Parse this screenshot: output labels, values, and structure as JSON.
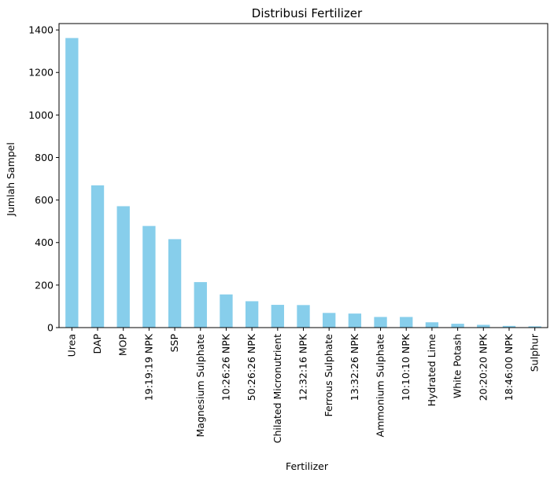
{
  "chart_data": {
    "type": "bar",
    "title": "Distribusi Fertilizer",
    "xlabel": "Fertilizer",
    "ylabel": "Jumlah Sampel",
    "categories": [
      "Urea",
      "DAP",
      "MOP",
      "19:19:19 NPK",
      "SSP",
      "Magnesium Sulphate",
      "10:26:26 NPK",
      "50:26:26 NPK",
      "Chilated Micronutrient",
      "12:32:16 NPK",
      "Ferrous Sulphate",
      "13:32:26 NPK",
      "Ammonium Sulphate",
      "10:10:10 NPK",
      "Hydrated Lime",
      "White Potash",
      "20:20:20 NPK",
      "18:46:00 NPK",
      "Sulphur"
    ],
    "values": [
      1362,
      669,
      571,
      478,
      416,
      214,
      156,
      124,
      107,
      106,
      69,
      66,
      50,
      50,
      25,
      18,
      13,
      8,
      6
    ],
    "yticks": [
      0,
      200,
      400,
      600,
      800,
      1000,
      1200,
      1400
    ],
    "ylim": [
      0,
      1430
    ],
    "grid": false,
    "bar_color": "#87ceeb"
  }
}
